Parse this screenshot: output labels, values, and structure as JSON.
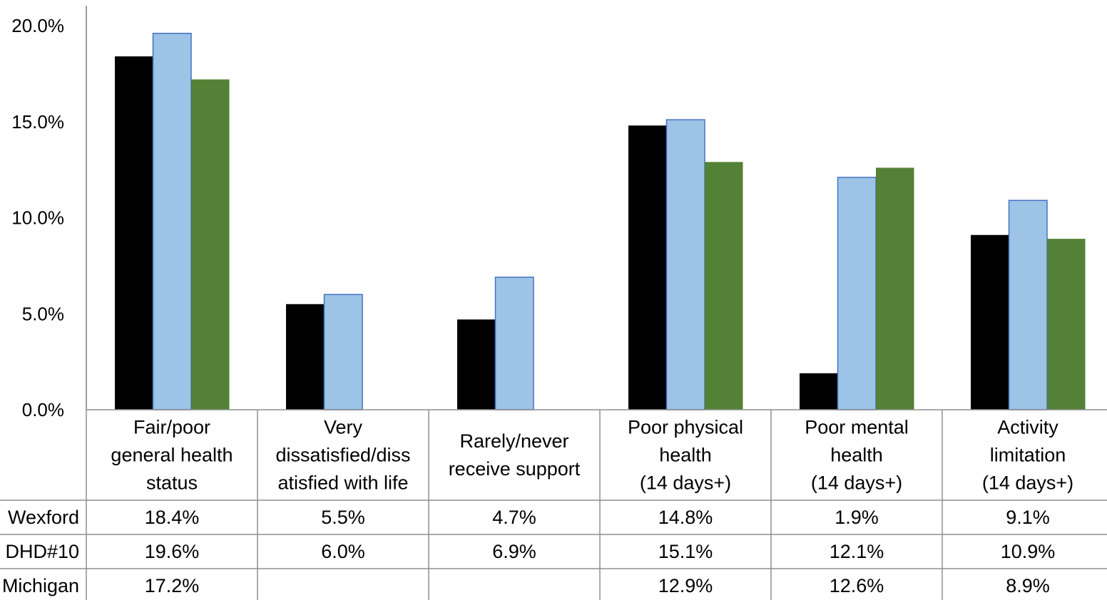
{
  "chart_data": {
    "type": "bar",
    "title": "",
    "xlabel": "",
    "ylabel": "",
    "ylim": [
      0,
      20
    ],
    "yticks": [
      "0.0%",
      "5.0%",
      "10.0%",
      "15.0%",
      "20.0%"
    ],
    "ytick_values": [
      0,
      5,
      10,
      15,
      20
    ],
    "categories": [
      [
        "Fair/poor",
        "general health",
        "status"
      ],
      [
        "Very",
        "dissatisfied/diss",
        "atisfied with life"
      ],
      [
        "Rarely/never",
        "receive support"
      ],
      [
        "Poor physical",
        "health",
        "(14 days+)"
      ],
      [
        "Poor mental",
        "health",
        "(14 days+)"
      ],
      [
        "Activity",
        "limitation",
        "(14 days+)"
      ]
    ],
    "series": [
      {
        "name": "Wexford",
        "color": "#000000",
        "values": [
          18.4,
          5.5,
          4.7,
          14.8,
          1.9,
          9.1
        ],
        "labels": [
          "18.4%",
          "5.5%",
          "4.7%",
          "14.8%",
          "1.9%",
          "9.1%"
        ]
      },
      {
        "name": "DHD#10",
        "color": "#9DC3E6",
        "stroke": "#4472C4",
        "values": [
          19.6,
          6.0,
          6.9,
          15.1,
          12.1,
          10.9
        ],
        "labels": [
          "19.6%",
          "6.0%",
          "6.9%",
          "15.1%",
          "12.1%",
          "10.9%"
        ]
      },
      {
        "name": "Michigan",
        "color": "#538135",
        "values": [
          17.2,
          null,
          null,
          12.9,
          12.6,
          8.9
        ],
        "labels": [
          "17.2%",
          "",
          "",
          "12.9%",
          "12.6%",
          "8.9%"
        ]
      }
    ],
    "grid": false,
    "legend": "data-table-below"
  }
}
